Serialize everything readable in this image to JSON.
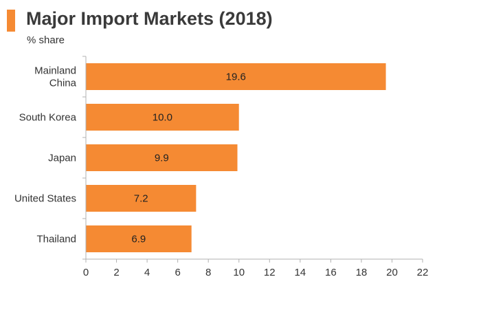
{
  "colors": {
    "accent": "#f58a33",
    "bar": "#f58a33",
    "axis": "#b0b0b0"
  },
  "chart_data": {
    "type": "bar",
    "orientation": "horizontal",
    "title": "Major Import Markets (2018)",
    "subtitle": "% share",
    "categories": [
      [
        "Mainland",
        "China"
      ],
      [
        "South Korea"
      ],
      [
        "Japan"
      ],
      [
        "United States"
      ],
      [
        "Thailand"
      ]
    ],
    "values": [
      19.6,
      10.0,
      9.9,
      7.2,
      6.9
    ],
    "data_labels": [
      "19.6",
      "10.0",
      "9.9",
      "7.2",
      "6.9"
    ],
    "xlim": [
      0,
      22
    ],
    "xticks": [
      0,
      2,
      4,
      6,
      8,
      10,
      12,
      14,
      16,
      18,
      20,
      22
    ],
    "grid": false,
    "legend": "none"
  }
}
